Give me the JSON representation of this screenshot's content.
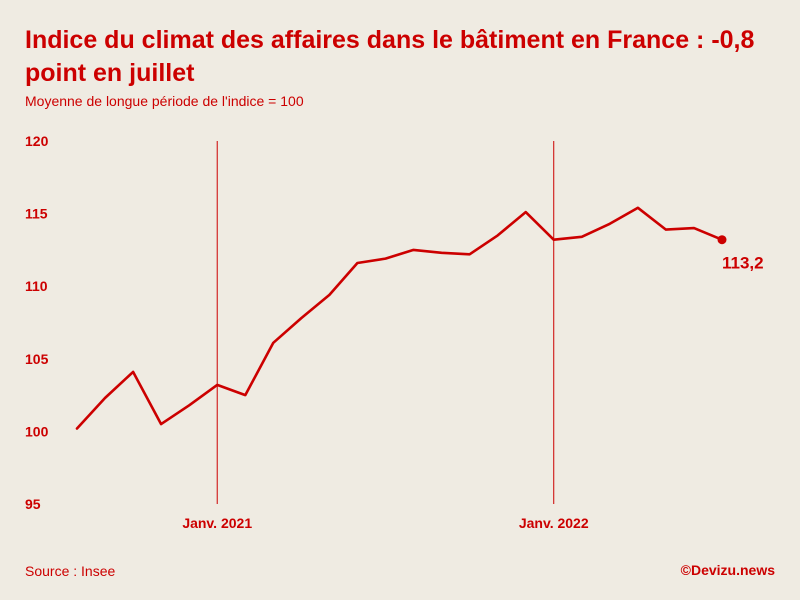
{
  "title": "Indice du climat des affaires dans le bâtiment en France : -0,8 point en juillet",
  "subtitle": "Moyenne de longue période de l'indice = 100",
  "source": "Source : Insee",
  "credit": "©Devizu.news",
  "colors": {
    "accent": "#cc0000",
    "background": "#efebe2"
  },
  "chart_data": {
    "type": "line",
    "title": "Indice du climat des affaires dans le bâtiment en France : -0,8 point en juillet",
    "subtitle": "Moyenne de longue période de l'indice = 100",
    "xlabel": "",
    "ylabel": "",
    "x": [
      "2020-08",
      "2020-09",
      "2020-10",
      "2020-11",
      "2020-12",
      "2021-01",
      "2021-02",
      "2021-03",
      "2021-04",
      "2021-05",
      "2021-06",
      "2021-07",
      "2021-08",
      "2021-09",
      "2021-10",
      "2021-11",
      "2021-12",
      "2022-01",
      "2022-02",
      "2022-03",
      "2022-04",
      "2022-05",
      "2022-06",
      "2022-07"
    ],
    "series": [
      {
        "values": [
          100.2,
          102.3,
          104.1,
          100.5,
          101.8,
          103.2,
          102.5,
          106.1,
          107.8,
          109.4,
          111.6,
          111.9,
          112.5,
          112.3,
          112.2,
          113.5,
          115.1,
          113.2,
          113.4,
          114.3,
          115.4,
          113.9,
          114.0,
          113.2
        ]
      }
    ],
    "ylim": [
      95,
      120
    ],
    "yticks": [
      "95",
      "100",
      "105",
      "110",
      "115",
      "120"
    ],
    "xticks": [
      {
        "x": "2021-01",
        "label": "Janv. 2021"
      },
      {
        "x": "2022-01",
        "label": "Janv. 2022"
      }
    ],
    "last_value_label": "113,2",
    "grid": false
  }
}
